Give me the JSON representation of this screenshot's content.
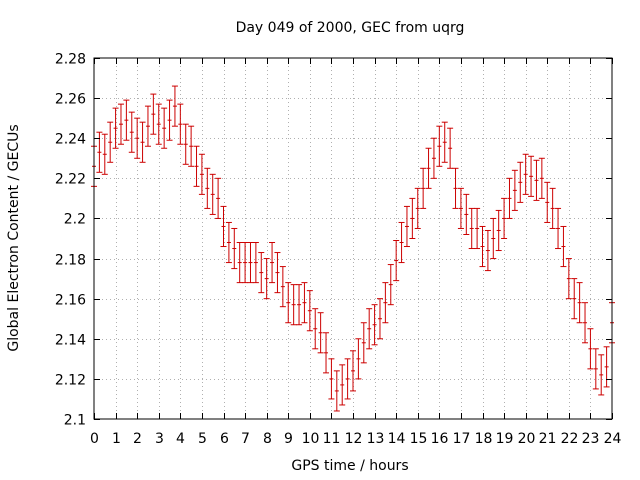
{
  "chart_data": {
    "type": "scatter",
    "title": "Day 049 of 2000, GEC from uqrg",
    "xlabel": "GPS time / hours",
    "ylabel": "Global Electron Content / GECUs",
    "xlim": [
      0,
      24
    ],
    "ylim": [
      2.1,
      2.28
    ],
    "xticks": [
      0,
      1,
      2,
      3,
      4,
      5,
      6,
      7,
      8,
      9,
      10,
      11,
      12,
      13,
      14,
      15,
      16,
      17,
      18,
      19,
      20,
      21,
      22,
      23,
      24
    ],
    "yticks": [
      2.1,
      2.12,
      2.14,
      2.16,
      2.18,
      2.2,
      2.22,
      2.24,
      2.26,
      2.28
    ],
    "ytick_labels": [
      "2.1",
      "2.12",
      "2.14",
      "2.16",
      "2.18",
      "2.2",
      "2.22",
      "2.24",
      "2.26",
      "2.28"
    ],
    "grid": true,
    "marker_color": "#cc0000",
    "error_bar_halfwidth": 0.01,
    "series": [
      {
        "x": [
          0.0,
          0.25,
          0.5,
          0.75,
          1.0,
          1.25,
          1.5,
          1.75,
          2.0,
          2.25,
          2.5,
          2.75,
          3.0,
          3.25,
          3.5,
          3.75,
          4.0,
          4.25,
          4.5,
          4.75,
          5.0,
          5.25,
          5.5,
          5.75,
          6.0,
          6.25,
          6.5,
          6.75,
          7.0,
          7.25,
          7.5,
          7.75,
          8.0,
          8.25,
          8.5,
          8.75,
          9.0,
          9.25,
          9.5,
          9.75,
          10.0,
          10.25,
          10.5,
          10.75,
          11.0,
          11.25,
          11.5,
          11.75,
          12.0,
          12.25,
          12.5,
          12.75,
          13.0,
          13.25,
          13.5,
          13.75,
          14.0,
          14.25,
          14.5,
          14.75,
          15.0,
          15.25,
          15.5,
          15.75,
          16.0,
          16.25,
          16.5,
          16.75,
          17.0,
          17.25,
          17.5,
          17.75,
          18.0,
          18.25,
          18.5,
          18.75,
          19.0,
          19.25,
          19.5,
          19.75,
          20.0,
          20.25,
          20.5,
          20.75,
          21.0,
          21.25,
          21.5,
          21.75,
          22.0,
          22.25,
          22.5,
          22.75,
          23.0,
          23.25,
          23.5,
          23.75,
          24.0
        ],
        "y": [
          2.226,
          2.233,
          2.232,
          2.238,
          2.245,
          2.247,
          2.249,
          2.243,
          2.24,
          2.238,
          2.246,
          2.252,
          2.247,
          2.245,
          2.249,
          2.256,
          2.247,
          2.237,
          2.236,
          2.226,
          2.222,
          2.215,
          2.212,
          2.21,
          2.196,
          2.188,
          2.185,
          2.178,
          2.178,
          2.178,
          2.178,
          2.173,
          2.17,
          2.178,
          2.173,
          2.166,
          2.158,
          2.157,
          2.157,
          2.158,
          2.154,
          2.145,
          2.143,
          2.133,
          2.12,
          2.114,
          2.117,
          2.12,
          2.124,
          2.13,
          2.138,
          2.145,
          2.147,
          2.15,
          2.158,
          2.167,
          2.179,
          2.188,
          2.196,
          2.2,
          2.205,
          2.215,
          2.225,
          2.23,
          2.236,
          2.238,
          2.235,
          2.215,
          2.205,
          2.202,
          2.195,
          2.195,
          2.186,
          2.184,
          2.19,
          2.194,
          2.2,
          2.21,
          2.214,
          2.218,
          2.222,
          2.221,
          2.219,
          2.22,
          2.208,
          2.205,
          2.195,
          2.186,
          2.17,
          2.16,
          2.158,
          2.148,
          2.135,
          2.125,
          2.122,
          2.126,
          2.148
        ]
      }
    ]
  }
}
